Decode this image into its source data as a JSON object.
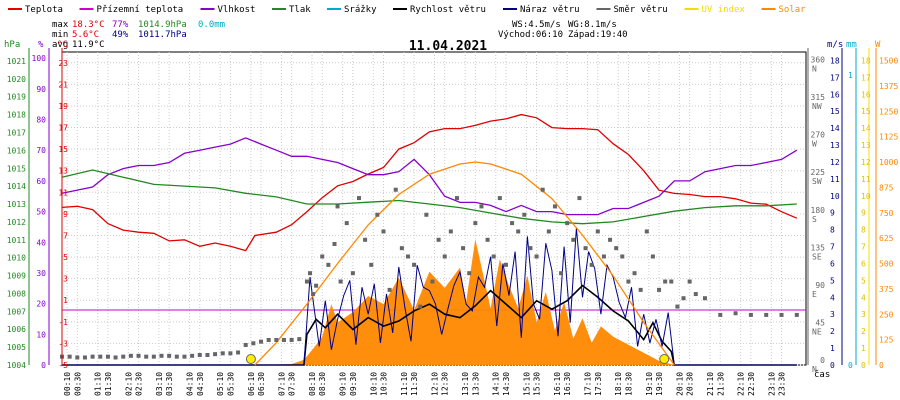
{
  "legend": [
    {
      "label": "Teplota",
      "color": "#e00000"
    },
    {
      "label": "Přízemní teplota",
      "color": "#cc00cc"
    },
    {
      "label": "Vlhkost",
      "color": "#8800cc"
    },
    {
      "label": "Tlak",
      "color": "#228822"
    },
    {
      "label": "Srážky",
      "color": "#00aacc"
    },
    {
      "label": "Rychlost větru",
      "color": "#000000"
    },
    {
      "label": "Náraz větru",
      "color": "#000088"
    },
    {
      "label": "Směr větru",
      "color": "#666666"
    },
    {
      "label": "UV index",
      "color": "#f0e000"
    },
    {
      "label": "Solar",
      "color": "#ff8800"
    }
  ],
  "stats": {
    "max_label": "max",
    "max_temp": "18.3°C",
    "max_hum": "77%",
    "max_press": "1014.9hPa",
    "max_rain": "0.0mm",
    "min_label": "min",
    "min_temp": "5.6°C",
    "min_hum": "49%",
    "min_press": "1011.7hPa",
    "avg_label": "avg",
    "avg_temp": "11.9°C",
    "ws": "WS:4.5m/s",
    "wg": "WG:8.1m/s",
    "sunrise": "Východ:06:10",
    "sunset": "Západ:19:40"
  },
  "axis_units": {
    "hpa": "hPa",
    "pct": "%",
    "deg": "°C",
    "ms": "m/s",
    "mm": "mm",
    "w": "W",
    "time": "čas"
  },
  "chart_data": {
    "type": "line",
    "title": "11.04.2021",
    "x_unit": "time of day",
    "x_ticks": [
      "00:10",
      "00:30",
      "01:10",
      "01:30",
      "02:10",
      "02:30",
      "03:10",
      "03:30",
      "04:10",
      "04:30",
      "05:10",
      "05:30",
      "06:10",
      "06:30",
      "07:10",
      "07:30",
      "08:10",
      "08:30",
      "09:10",
      "09:30",
      "10:10",
      "10:30",
      "11:10",
      "11:30",
      "12:10",
      "12:30",
      "13:10",
      "13:30",
      "14:10",
      "14:30",
      "15:10",
      "15:30",
      "16:10",
      "16:30",
      "17:10",
      "17:30",
      "18:10",
      "18:30",
      "19:10",
      "19:30",
      "20:10",
      "20:30",
      "21:10",
      "21:30",
      "22:10",
      "22:30",
      "23:10",
      "23:30"
    ],
    "axes": {
      "pressure_hpa": {
        "ticks": [
          1004,
          1005,
          1006,
          1007,
          1008,
          1009,
          1010,
          1011,
          1012,
          1013,
          1014,
          1015,
          1016,
          1017,
          1018,
          1019,
          1020,
          1021
        ],
        "range": [
          1004,
          1021.5
        ]
      },
      "humidity_pct": {
        "ticks": [
          0,
          10,
          20,
          30,
          40,
          50,
          60,
          70,
          80,
          90,
          100
        ],
        "range": [
          0,
          102
        ]
      },
      "temp_c": {
        "ticks": [
          -5,
          -3,
          -1,
          1,
          3,
          5,
          7,
          9,
          11,
          13,
          15,
          17,
          19,
          21,
          23
        ],
        "range": [
          -5,
          24
        ]
      },
      "wind_dir": {
        "ticks": [
          {
            "v": 0,
            "l": "0",
            "s": "N"
          },
          {
            "v": 45,
            "l": "45",
            "s": "NE"
          },
          {
            "v": 90,
            "l": "90",
            "s": "E"
          },
          {
            "v": 135,
            "l": "135",
            "s": "SE"
          },
          {
            "v": 180,
            "l": "180",
            "s": "S"
          },
          {
            "v": 225,
            "l": "225",
            "s": "SW"
          },
          {
            "v": 270,
            "l": "270",
            "s": "W"
          },
          {
            "v": 315,
            "l": "315",
            "s": "NW"
          },
          {
            "v": 360,
            "l": "360",
            "s": "N"
          }
        ],
        "range": [
          0,
          375
        ]
      },
      "wind_ms": {
        "ticks": [
          0,
          1,
          2,
          3,
          4,
          5,
          6,
          7,
          8,
          9,
          10,
          11,
          12,
          13,
          14,
          15,
          16,
          17,
          18
        ],
        "range": [
          0,
          18.5
        ]
      },
      "rain_mm": {
        "ticks": [
          0,
          1
        ],
        "range": [
          0,
          1.08
        ]
      },
      "uv": {
        "ticks": [
          0,
          1,
          2,
          3,
          4,
          5,
          6,
          7,
          8,
          9,
          10,
          11,
          12,
          13,
          14,
          15,
          16,
          17,
          18
        ],
        "range": [
          0,
          18.5
        ]
      },
      "solar_w": {
        "ticks": [
          0,
          125,
          250,
          375,
          500,
          625,
          750,
          875,
          1000,
          1125,
          1250,
          1375,
          1500
        ],
        "range": [
          0,
          1542
        ]
      }
    },
    "series": [
      {
        "name": "Teplota",
        "unit": "°C",
        "color": "#e00000",
        "x": [
          0,
          0.5,
          1,
          1.5,
          2,
          2.5,
          3,
          3.5,
          4,
          4.5,
          5,
          5.5,
          6,
          6.3,
          7,
          7.5,
          8,
          8.5,
          9,
          9.5,
          10,
          10.5,
          11,
          11.5,
          12,
          12.5,
          13,
          13.5,
          14,
          14.5,
          15,
          15.5,
          16,
          16.5,
          17,
          17.5,
          18,
          18.5,
          19,
          19.5,
          20,
          20.5,
          21,
          21.5,
          22,
          22.5,
          23,
          23.5,
          24
        ],
        "values": [
          9.6,
          9.7,
          9.4,
          8.1,
          7.5,
          7.3,
          7.2,
          6.5,
          6.6,
          6.0,
          6.3,
          6.0,
          5.6,
          7.0,
          7.3,
          8.0,
          9.2,
          10.5,
          11.6,
          12.0,
          12.7,
          13.3,
          15.0,
          15.6,
          16.6,
          16.9,
          16.9,
          17.2,
          17.6,
          17.8,
          18.2,
          17.9,
          17.0,
          16.9,
          16.9,
          16.8,
          15.5,
          14.5,
          13.0,
          11.2,
          10.9,
          10.8,
          10.6,
          10.6,
          10.4,
          10.0,
          9.9,
          9.2,
          8.6
        ]
      },
      {
        "name": "Vlhkost",
        "unit": "%",
        "color": "#8800cc",
        "x": [
          0,
          0.5,
          1,
          1.5,
          2,
          2.5,
          3,
          3.5,
          4,
          4.5,
          5,
          5.5,
          6,
          6.5,
          7,
          7.5,
          8,
          8.5,
          9,
          9.5,
          10,
          10.5,
          11,
          11.5,
          12,
          12.5,
          13,
          13.5,
          14,
          14.5,
          15,
          15.5,
          16,
          16.5,
          17,
          17.5,
          18,
          18.5,
          19,
          19.5,
          20,
          20.5,
          21,
          21.5,
          22,
          22.5,
          23,
          23.5,
          24
        ],
        "values": [
          56,
          57,
          58,
          62,
          64,
          65,
          65,
          66,
          69,
          70,
          71,
          72,
          74,
          72,
          70,
          68,
          68,
          67,
          66,
          64,
          62,
          62,
          63,
          67,
          62,
          55,
          53,
          53,
          52,
          50,
          52,
          50,
          50,
          49,
          49,
          49,
          51,
          51,
          53,
          55,
          60,
          60,
          63,
          64,
          65,
          65,
          66,
          67,
          70
        ]
      },
      {
        "name": "Tlak",
        "unit": "hPa",
        "color": "#228822",
        "x": [
          0,
          1,
          2,
          3,
          4,
          5,
          6,
          7,
          8,
          9,
          10,
          11,
          12,
          13,
          14,
          15,
          16,
          17,
          18,
          19,
          20,
          21,
          22,
          23,
          24
        ],
        "values": [
          1014.5,
          1014.9,
          1014.5,
          1014.1,
          1014.0,
          1013.9,
          1013.6,
          1013.4,
          1013.0,
          1013.0,
          1013.1,
          1013.2,
          1013.0,
          1012.8,
          1012.5,
          1012.2,
          1012.0,
          1011.9,
          1012.0,
          1012.3,
          1012.6,
          1012.8,
          1012.9,
          1012.9,
          1013.0
        ]
      },
      {
        "name": "Rychlost větru",
        "unit": "m/s",
        "color": "#000000",
        "x": [
          0,
          7.9,
          8.0,
          8.3,
          8.6,
          9.0,
          9.5,
          10.0,
          10.5,
          11.0,
          11.5,
          12.0,
          12.5,
          13.0,
          13.5,
          14.0,
          14.5,
          15.0,
          15.5,
          16.0,
          16.5,
          17.0,
          17.5,
          18.0,
          18.5,
          19.0,
          19.3,
          19.6,
          19.9,
          20.0,
          24
        ],
        "values": [
          0,
          0,
          1.8,
          2.7,
          2.2,
          3.0,
          2.1,
          2.8,
          2.3,
          2.6,
          3.2,
          3.6,
          3.0,
          2.8,
          3.5,
          4.4,
          3.6,
          2.8,
          3.8,
          3.3,
          3.8,
          4.7,
          4.0,
          3.2,
          2.6,
          1.5,
          2.5,
          1.4,
          0.8,
          0,
          0
        ]
      },
      {
        "name": "Náraz větru",
        "unit": "m/s",
        "color": "#000088",
        "x": [
          0,
          7.9,
          8.1,
          8.4,
          8.6,
          8.8,
          9.0,
          9.2,
          9.4,
          9.6,
          9.8,
          10.0,
          10.2,
          10.4,
          10.6,
          10.8,
          11.0,
          11.2,
          11.4,
          11.6,
          11.8,
          12.0,
          12.2,
          12.4,
          12.6,
          12.8,
          13.0,
          13.2,
          13.4,
          13.6,
          13.8,
          14.0,
          14.2,
          14.4,
          14.6,
          14.8,
          15.0,
          15.2,
          15.4,
          15.6,
          15.8,
          16.0,
          16.2,
          16.4,
          16.6,
          16.8,
          17.0,
          17.2,
          17.4,
          17.6,
          17.8,
          18.0,
          18.2,
          18.4,
          18.6,
          18.8,
          19.0,
          19.2,
          19.4,
          19.6,
          19.8,
          20.0,
          24
        ],
        "values": [
          0,
          0,
          5.2,
          1.1,
          3.8,
          0.9,
          2.7,
          4.1,
          5.0,
          1.2,
          4.6,
          3.0,
          4.8,
          1.3,
          4.2,
          1.9,
          5.8,
          3.4,
          1.4,
          5.9,
          4.6,
          4.4,
          3.6,
          1.8,
          3.3,
          4.7,
          5.5,
          3.6,
          3.2,
          5.2,
          4.6,
          6.4,
          2.3,
          6.0,
          4.1,
          6.7,
          1.6,
          7.6,
          3.6,
          2.7,
          7.2,
          5.6,
          1.7,
          7.0,
          2.5,
          8.1,
          4.0,
          6.7,
          5.7,
          3.0,
          5.9,
          5.2,
          3.7,
          2.8,
          4.6,
          1.1,
          3.0,
          1.3,
          2.7,
          1.1,
          3.1,
          0,
          0
        ]
      },
      {
        "name": "Solar",
        "unit": "W",
        "color": "#ff8800",
        "type": "area",
        "x": [
          6.5,
          7.5,
          7.9,
          8.2,
          8.5,
          8.8,
          9.0,
          9.5,
          10.0,
          10.5,
          11.0,
          11.5,
          12.0,
          12.5,
          13.0,
          13.2,
          13.5,
          14.0,
          14.3,
          14.6,
          14.9,
          15.2,
          15.5,
          15.8,
          16.1,
          16.4,
          16.7,
          17.0,
          17.3,
          17.6,
          18.0,
          18.5,
          19.0,
          19.5,
          20.0
        ],
        "values": [
          0,
          5,
          25,
          80,
          140,
          300,
          210,
          260,
          340,
          300,
          430,
          270,
          460,
          380,
          480,
          310,
          620,
          280,
          520,
          390,
          280,
          440,
          210,
          360,
          170,
          310,
          130,
          230,
          110,
          190,
          140,
          100,
          60,
          20,
          0
        ]
      },
      {
        "name": "Solar clear-sky",
        "unit": "W",
        "color": "#ff8800",
        "x": [
          6.3,
          7,
          8,
          9,
          10,
          11,
          12,
          13,
          13.5,
          14,
          15,
          16,
          17,
          18,
          19,
          20
        ],
        "values": [
          0,
          110,
          300,
          500,
          690,
          840,
          940,
          990,
          1000,
          990,
          940,
          820,
          640,
          440,
          210,
          0
        ]
      },
      {
        "name": "Směr větru",
        "unit": "°",
        "color": "#666666",
        "type": "scatter",
        "x": [
          0,
          0.25,
          0.5,
          0.75,
          1,
          1.25,
          1.5,
          1.75,
          2,
          2.25,
          2.5,
          2.75,
          3,
          3.25,
          3.5,
          3.75,
          4,
          4.25,
          4.5,
          4.75,
          5,
          5.25,
          5.5,
          5.75,
          6,
          6.25,
          6.5,
          6.75,
          7,
          7.25,
          7.5,
          7.75,
          8,
          8.1,
          8.2,
          8.3,
          8.5,
          8.7,
          8.9,
          9.0,
          9.1,
          9.3,
          9.5,
          9.7,
          9.9,
          10.1,
          10.3,
          10.5,
          10.7,
          10.9,
          11.1,
          11.3,
          11.5,
          11.7,
          11.9,
          12.1,
          12.3,
          12.5,
          12.7,
          12.9,
          13.1,
          13.3,
          13.5,
          13.7,
          13.9,
          14.1,
          14.3,
          14.5,
          14.7,
          14.9,
          15.1,
          15.3,
          15.5,
          15.7,
          15.9,
          16.1,
          16.3,
          16.5,
          16.7,
          16.9,
          17.1,
          17.3,
          17.5,
          17.7,
          17.9,
          18.1,
          18.3,
          18.5,
          18.7,
          18.9,
          19.1,
          19.3,
          19.5,
          19.7,
          19.9,
          20.1,
          20.3,
          20.5,
          20.7,
          21.0,
          21.5,
          22,
          22.5,
          23,
          23.5,
          24
        ],
        "values": [
          10,
          10,
          9,
          9,
          10,
          10,
          10,
          9,
          10,
          11,
          11,
          10,
          10,
          11,
          11,
          10,
          10,
          11,
          12,
          12,
          13,
          14,
          14,
          15,
          24,
          26,
          28,
          30,
          30,
          30,
          30,
          31,
          100,
          110,
          85,
          95,
          130,
          120,
          145,
          190,
          100,
          170,
          110,
          200,
          150,
          120,
          180,
          160,
          90,
          210,
          140,
          130,
          120,
          70,
          180,
          100,
          150,
          130,
          160,
          200,
          140,
          110,
          170,
          190,
          150,
          130,
          200,
          120,
          170,
          160,
          180,
          140,
          130,
          210,
          160,
          190,
          110,
          170,
          150,
          200,
          140,
          120,
          160,
          130,
          150,
          140,
          130,
          100,
          110,
          90,
          160,
          130,
          90,
          100,
          100,
          70,
          80,
          100,
          85,
          80,
          60,
          62,
          60,
          60,
          60,
          60
        ]
      }
    ],
    "reference_lines": [
      {
        "name": "dew-line",
        "value": 0.1,
        "unit": "°C",
        "color": "#cc00cc"
      }
    ],
    "sun_markers": {
      "sunrise": 6.17,
      "sunset": 19.67
    }
  }
}
